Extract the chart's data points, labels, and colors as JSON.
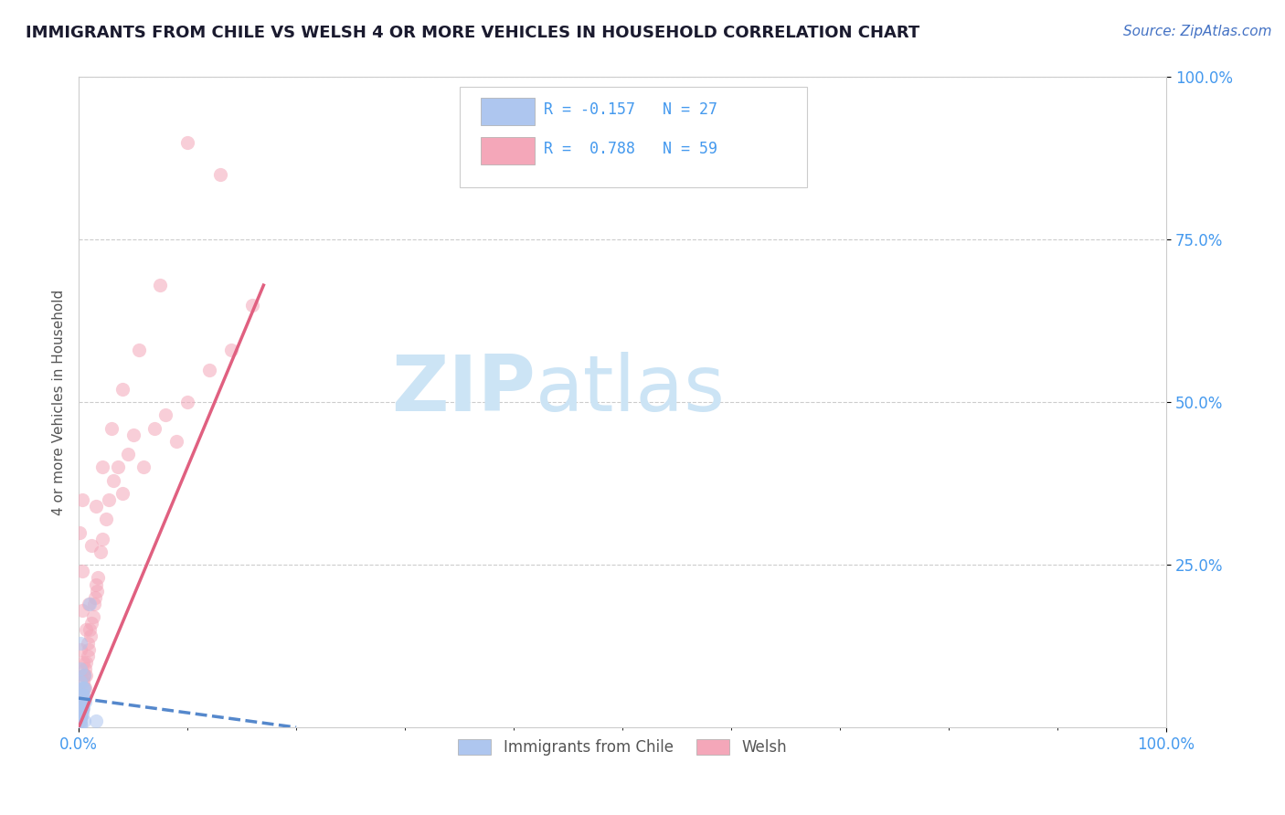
{
  "title": "IMMIGRANTS FROM CHILE VS WELSH 4 OR MORE VEHICLES IN HOUSEHOLD CORRELATION CHART",
  "source_text": "Source: ZipAtlas.com",
  "xlabel": "",
  "ylabel": "4 or more Vehicles in Household",
  "xlim": [
    0.0,
    1.0
  ],
  "ylim": [
    0.0,
    1.0
  ],
  "xtick_labels": [
    "0.0%",
    "100.0%"
  ],
  "xtick_vals": [
    0.0,
    1.0
  ],
  "ytick_labels": [
    "25.0%",
    "50.0%",
    "75.0%",
    "100.0%"
  ],
  "ytick_vals": [
    0.25,
    0.5,
    0.75,
    1.0
  ],
  "legend_entries": [
    {
      "label": "R = -0.157   N = 27",
      "color": "#aec6ef"
    },
    {
      "label": "R =  0.788   N = 59",
      "color": "#f4a7b9"
    }
  ],
  "legend_bottom_entries": [
    {
      "label": "Immigrants from Chile",
      "color": "#aec6ef"
    },
    {
      "label": "Welsh",
      "color": "#f4a7b9"
    }
  ],
  "watermark_top": "ZIP",
  "watermark_bottom": "atlas",
  "watermark_color": "#cce4f5",
  "title_color": "#1a1a2e",
  "title_fontsize": 13,
  "axis_color": "#cccccc",
  "grid_color": "#cccccc",
  "blue_scatter_x": [
    0.002,
    0.004,
    0.005,
    0.002,
    0.003,
    0.004,
    0.005,
    0.003,
    0.002,
    0.004,
    0.003,
    0.002,
    0.005,
    0.004,
    0.003,
    0.002,
    0.006,
    0.003,
    0.002,
    0.004,
    0.002,
    0.003,
    0.002,
    0.004,
    0.002,
    0.01,
    0.016
  ],
  "blue_scatter_y": [
    0.01,
    0.04,
    0.06,
    0.02,
    0.03,
    0.05,
    0.01,
    0.06,
    0.005,
    0.04,
    0.02,
    0.07,
    0.08,
    0.03,
    0.05,
    0.015,
    0.04,
    0.025,
    0.005,
    0.06,
    0.015,
    0.03,
    0.09,
    0.05,
    0.13,
    0.19,
    0.01
  ],
  "pink_scatter_x": [
    0.001,
    0.002,
    0.003,
    0.003,
    0.004,
    0.004,
    0.005,
    0.005,
    0.006,
    0.006,
    0.007,
    0.007,
    0.008,
    0.008,
    0.009,
    0.01,
    0.011,
    0.012,
    0.013,
    0.014,
    0.015,
    0.016,
    0.017,
    0.018,
    0.02,
    0.022,
    0.025,
    0.028,
    0.032,
    0.036,
    0.04,
    0.045,
    0.05,
    0.06,
    0.07,
    0.08,
    0.09,
    0.1,
    0.12,
    0.14,
    0.16,
    0.001,
    0.002,
    0.003,
    0.003,
    0.004,
    0.003,
    0.005,
    0.007,
    0.009,
    0.012,
    0.016,
    0.022,
    0.03,
    0.04,
    0.055,
    0.075,
    0.1,
    0.13
  ],
  "pink_scatter_y": [
    0.01,
    0.02,
    0.03,
    0.05,
    0.04,
    0.07,
    0.06,
    0.08,
    0.06,
    0.09,
    0.1,
    0.08,
    0.11,
    0.13,
    0.12,
    0.15,
    0.14,
    0.16,
    0.17,
    0.19,
    0.2,
    0.22,
    0.21,
    0.23,
    0.27,
    0.29,
    0.32,
    0.35,
    0.38,
    0.4,
    0.36,
    0.42,
    0.45,
    0.4,
    0.46,
    0.48,
    0.44,
    0.5,
    0.55,
    0.58,
    0.65,
    0.3,
    0.12,
    0.18,
    0.24,
    0.1,
    0.35,
    0.08,
    0.15,
    0.19,
    0.28,
    0.34,
    0.4,
    0.46,
    0.52,
    0.58,
    0.68,
    0.9,
    0.85
  ],
  "blue_line_x": [
    0.0,
    0.2
  ],
  "blue_line_y": [
    0.045,
    0.0
  ],
  "pink_line_x": [
    0.0,
    0.17
  ],
  "pink_line_y": [
    0.0,
    0.68
  ],
  "scatter_size": 120,
  "scatter_alpha": 0.55,
  "scatter_color_blue": "#aec6ef",
  "scatter_color_pink": "#f4a7b9",
  "line_color_blue": "#5588cc",
  "line_color_pink": "#e06080",
  "line_style_blue": "--",
  "line_style_pink": "-",
  "line_width": 2.5,
  "bg_color": "#ffffff",
  "source_color": "#4472c4",
  "source_fontsize": 11,
  "tick_color": "#4499ee",
  "tick_fontsize": 12
}
